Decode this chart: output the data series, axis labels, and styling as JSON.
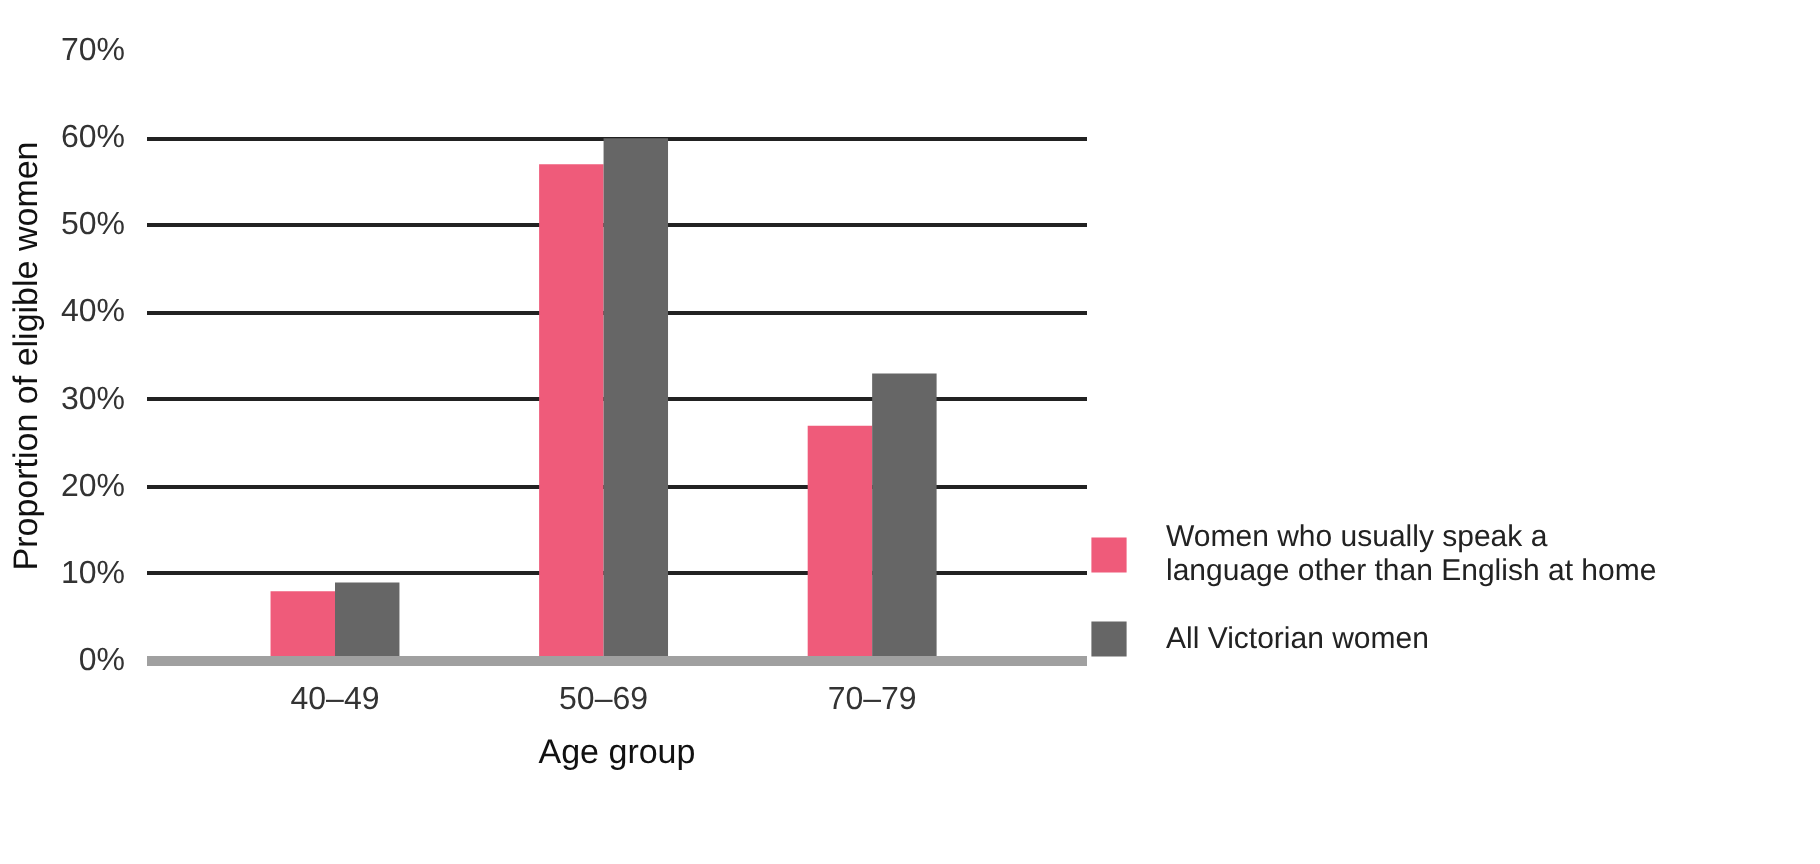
{
  "chart_data": {
    "type": "bar",
    "xlabel": "Age group",
    "ylabel": "Proportion of eligible women",
    "categories": [
      "40–49",
      "50–69",
      "70–79"
    ],
    "series": [
      {
        "name": "Women who usually speak a\nlanguage other than English at home",
        "color": "#ef5b7a",
        "values": [
          8,
          57,
          27
        ]
      },
      {
        "name": "All Victorian women",
        "color": "#666666",
        "values": [
          9,
          60,
          33
        ]
      }
    ],
    "ylim": [
      0,
      70
    ],
    "yticks": [
      {
        "value": 0,
        "label": "0%"
      },
      {
        "value": 10,
        "label": "10%"
      },
      {
        "value": 20,
        "label": "20%"
      },
      {
        "value": 30,
        "label": "30%"
      },
      {
        "value": 40,
        "label": "40%"
      },
      {
        "value": 50,
        "label": "50%"
      },
      {
        "value": 60,
        "label": "60%"
      },
      {
        "value": 70,
        "label": "70%"
      }
    ],
    "grid": "y",
    "legend": "right"
  }
}
